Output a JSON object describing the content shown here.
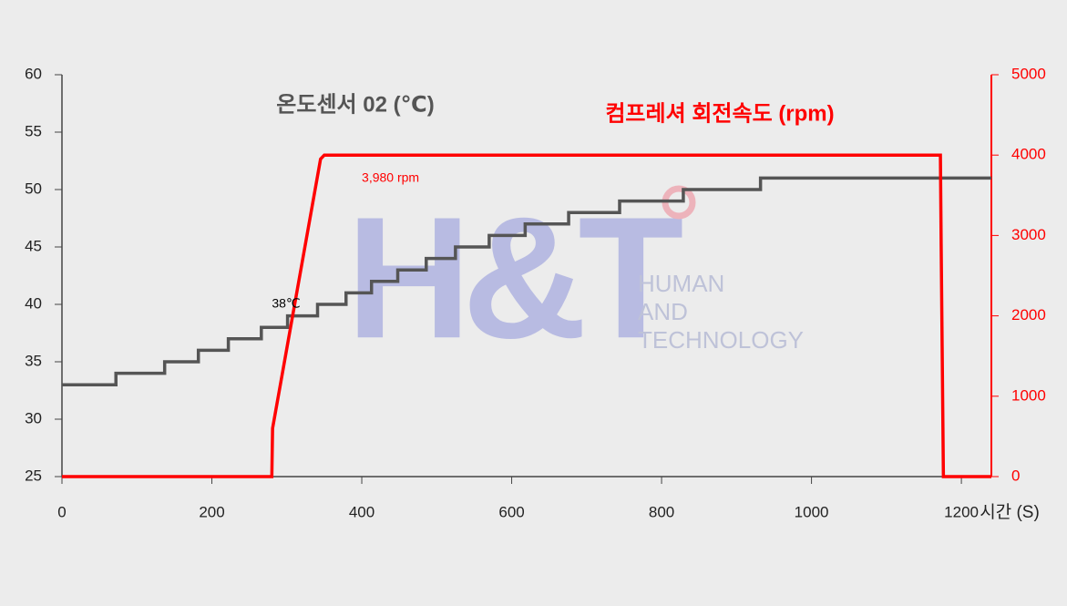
{
  "chart_data": {
    "type": "line",
    "title": "온도센서 02 (℃)",
    "y2_title": "컴프레셔 회전속도 (rpm)",
    "x_label": "시간 (S)",
    "xlim": [
      0,
      1240
    ],
    "xticks": [
      0,
      200,
      400,
      600,
      800,
      1000,
      1200
    ],
    "ylim": [
      25,
      60
    ],
    "yticks": [
      25,
      30,
      35,
      40,
      45,
      50,
      55,
      60
    ],
    "y2lim": [
      0,
      5000
    ],
    "y2ticks": [
      0,
      1000,
      2000,
      3000,
      4000,
      5000
    ],
    "series": [
      {
        "name": "온도센서 02",
        "color": "#555555",
        "step": true,
        "x": [
          0,
          72,
          137,
          182,
          222,
          266,
          301,
          341,
          379,
          413,
          448,
          486,
          525,
          570,
          618,
          676,
          744,
          829,
          932,
          1240
        ],
        "values": [
          33,
          34,
          35,
          36,
          37,
          38,
          39,
          40,
          41,
          42,
          43,
          44,
          45,
          46,
          47,
          48,
          49,
          50,
          51,
          51
        ]
      },
      {
        "name": "컴프레셔 회전속도",
        "color": "#ff0000",
        "axis": "y2",
        "x": [
          0,
          280,
          281,
          345,
          350,
          1172,
          1173,
          1176,
          1240
        ],
        "values": [
          0,
          0,
          600,
          3950,
          4000,
          4000,
          2900,
          0,
          0
        ]
      }
    ],
    "annotations": [
      {
        "text": "3,980 rpm",
        "x": 400,
        "y": 3710,
        "axis": "y2",
        "color": "#ff0000"
      },
      {
        "text": "38℃",
        "x": 280,
        "y": 40,
        "color": "#000000"
      }
    ]
  },
  "watermark": {
    "logo": "H&T",
    "lines": [
      "HUMAN",
      "AND",
      "TECHNOLOGY"
    ]
  }
}
